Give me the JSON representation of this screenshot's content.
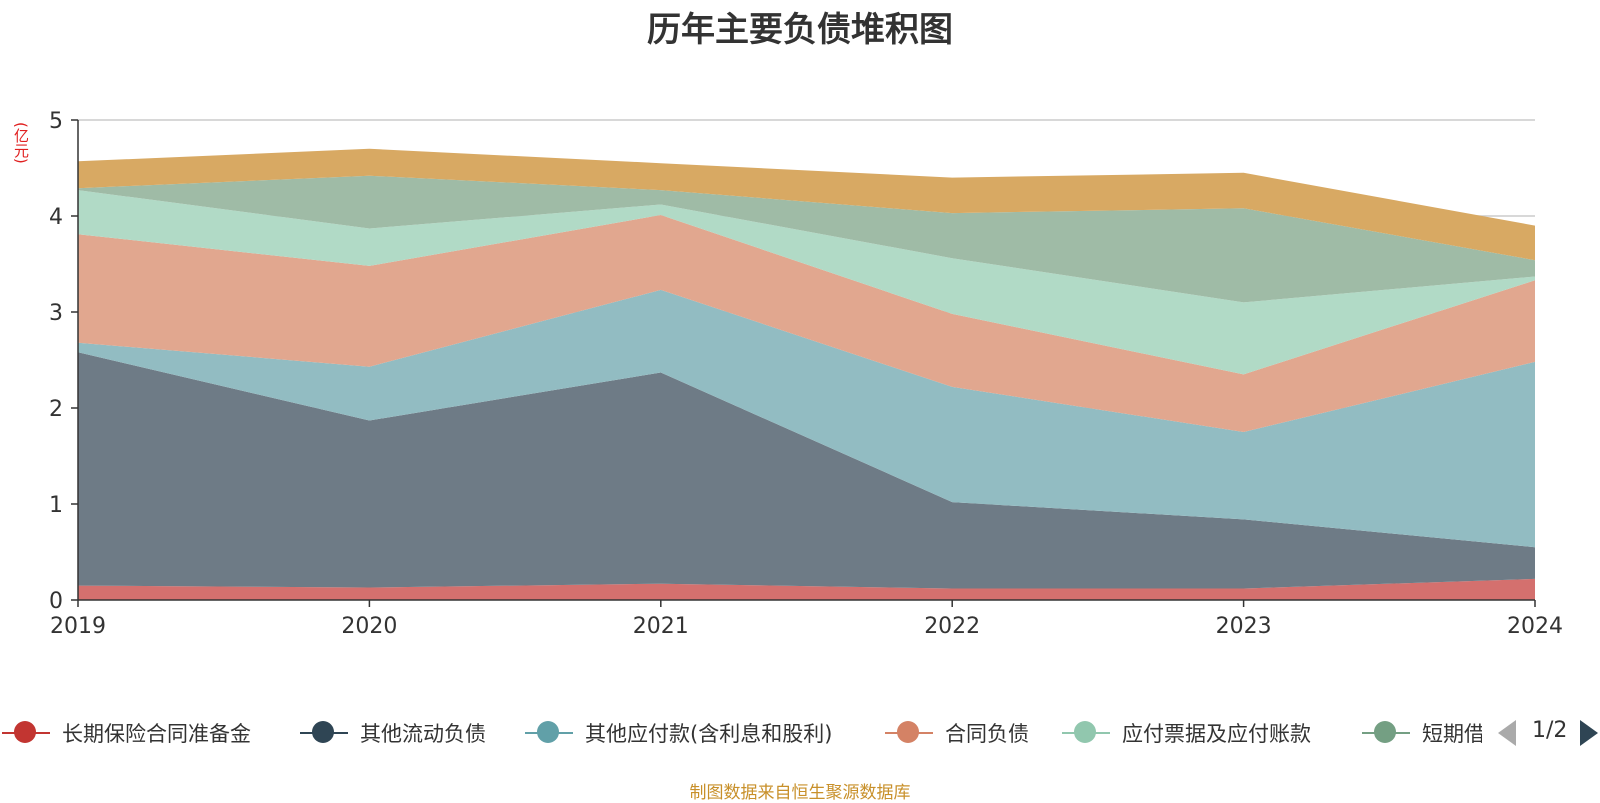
{
  "chart_data": {
    "type": "area",
    "stacked": true,
    "title": "历年主要负债堆积图",
    "ylabel": "(亿元)",
    "x": [
      "2019",
      "2020",
      "2021",
      "2022",
      "2023",
      "2024"
    ],
    "ylim": [
      0,
      5
    ],
    "yticks": [
      "0",
      "1",
      "2",
      "3",
      "4",
      "5"
    ],
    "grid": true,
    "series": [
      {
        "name": "长期保险合同准备金",
        "color": "#c23531",
        "fill": "#d4706e",
        "values": [
          0.15,
          0.13,
          0.17,
          0.12,
          0.12,
          0.22
        ]
      },
      {
        "name": "其他流动负债",
        "color": "#2f4554",
        "fill": "#6e7b86",
        "values": [
          2.43,
          1.74,
          2.2,
          0.9,
          0.72,
          0.33
        ]
      },
      {
        "name": "其他应付款(含利息和股利)",
        "color": "#61a0a8",
        "fill": "#92bcc2",
        "values": [
          0.1,
          0.56,
          0.86,
          1.2,
          0.91,
          1.93
        ]
      },
      {
        "name": "合同负债",
        "color": "#d48265",
        "fill": "#e1a78f",
        "values": [
          1.13,
          1.05,
          0.78,
          0.76,
          0.6,
          0.85
        ]
      },
      {
        "name": "应付票据及应付账款",
        "color": "#91c7ae",
        "fill": "#b1dac6",
        "values": [
          0.46,
          0.39,
          0.11,
          0.58,
          0.75,
          0.04
        ]
      },
      {
        "name": "短期借款",
        "color": "#749f83",
        "fill": "#9fbba6",
        "values": [
          0.02,
          0.55,
          0.15,
          0.47,
          0.98,
          0.17
        ]
      },
      {
        "name": "",
        "color": "#ca8622",
        "fill": "#d8a963",
        "values": [
          0.28,
          0.28,
          0.28,
          0.37,
          0.37,
          0.36
        ]
      }
    ],
    "legend_position": "bottom"
  },
  "legend": {
    "items": [
      "长期保险合同准备金",
      "其他流动负债",
      "其他应付款(含利息和股利)",
      "合同负债",
      "应付票据及应付账款",
      "短期借款"
    ],
    "page_label": "1/2"
  },
  "source": "制图数据来自恒生聚源数据库"
}
